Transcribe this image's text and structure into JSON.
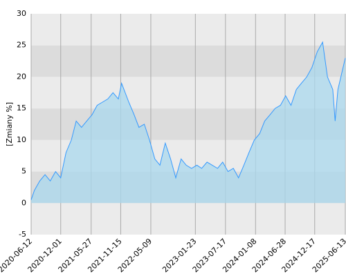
{
  "chart_data": {
    "type": "area",
    "y_label": "[Zmiany %]",
    "x": [
      "2020-06-12",
      "2020-07-01",
      "2020-08-01",
      "2020-09-01",
      "2020-10-01",
      "2020-11-01",
      "2020-12-01",
      "2021-01-01",
      "2021-02-01",
      "2021-03-01",
      "2021-04-01",
      "2021-05-01",
      "2021-06-01",
      "2021-07-01",
      "2021-08-01",
      "2021-09-01",
      "2021-10-01",
      "2021-11-01",
      "2021-11-20",
      "2022-01-01",
      "2022-02-01",
      "2022-03-01",
      "2022-04-01",
      "2022-05-01",
      "2022-06-01",
      "2022-07-01",
      "2022-08-01",
      "2022-09-01",
      "2022-10-01",
      "2022-11-01",
      "2022-12-01",
      "2023-01-01",
      "2023-02-01",
      "2023-03-01",
      "2023-04-01",
      "2023-05-01",
      "2023-06-01",
      "2023-07-01",
      "2023-08-01",
      "2023-09-01",
      "2023-10-01",
      "2023-11-01",
      "2023-12-01",
      "2024-01-01",
      "2024-02-01",
      "2024-03-01",
      "2024-04-01",
      "2024-05-01",
      "2024-06-01",
      "2024-07-01",
      "2024-08-01",
      "2024-09-01",
      "2024-10-01",
      "2024-11-01",
      "2024-12-01",
      "2025-01-01",
      "2025-02-01",
      "2025-03-01",
      "2025-04-01",
      "2025-04-15",
      "2025-05-01",
      "2025-06-13"
    ],
    "series": [
      {
        "color": "#3399ff",
        "fill": "#aad8ee",
        "values": [
          0.5,
          2,
          3.5,
          4.5,
          3.5,
          5,
          4,
          8,
          10,
          13,
          12,
          13,
          14,
          15.5,
          16,
          16.5,
          17.5,
          16.5,
          19,
          16,
          14,
          12,
          12.5,
          10,
          7,
          6,
          9.5,
          7,
          4,
          7,
          6,
          5.5,
          6,
          5.5,
          6.5,
          6,
          5.5,
          6.5,
          5,
          5.5,
          4,
          6,
          8,
          10,
          11,
          13,
          14,
          15,
          15.5,
          17,
          15.5,
          18,
          19,
          20,
          21.5,
          24,
          25.5,
          20,
          18,
          13,
          18,
          23
        ]
      }
    ],
    "xlim": [
      "2020-06-12",
      "2025-06-13"
    ],
    "xticks": [
      "2020-06-12",
      "2020-12-01",
      "2021-05-27",
      "2021-11-15",
      "2022-05-09",
      "2023-01-23",
      "2023-07-17",
      "2024-01-08",
      "2024-06-28",
      "2024-12-17",
      "2025-06-13"
    ],
    "ylim": [
      -5,
      30
    ],
    "yticks": [
      -5,
      0,
      5,
      10,
      15,
      20,
      25,
      30
    ],
    "grid": true
  }
}
